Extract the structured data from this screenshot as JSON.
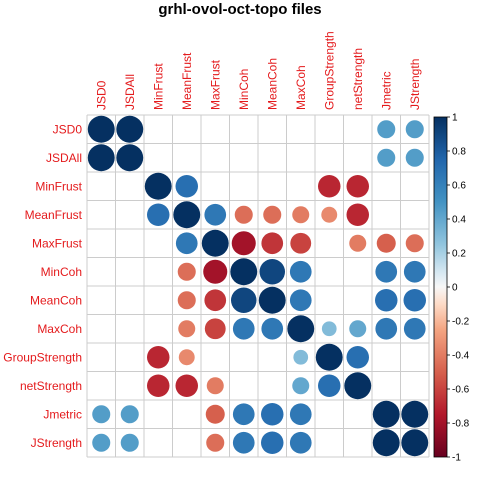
{
  "chart_data": {
    "type": "heatmap",
    "title": "grhl-ovol-oct-topo files",
    "variables": [
      "JSD0",
      "JSDAll",
      "MinFrust",
      "MeanFrust",
      "MaxFrust",
      "MinCoh",
      "MeanCoh",
      "MaxCoh",
      "GroupStrength",
      "netStrength",
      "Jmetric",
      "JStrength"
    ],
    "matrix": [
      [
        1,
        1,
        0,
        0,
        0,
        0,
        0,
        0,
        0,
        0,
        0.45,
        0.45
      ],
      [
        1,
        1,
        0,
        0,
        0,
        0,
        0,
        0,
        0,
        0,
        0.45,
        0.45
      ],
      [
        0,
        0,
        1,
        0.7,
        0,
        0,
        0,
        0,
        -0.7,
        -0.7,
        0,
        0
      ],
      [
        0,
        0,
        0.7,
        1,
        0.65,
        -0.45,
        -0.45,
        -0.4,
        -0.35,
        -0.7,
        0,
        0
      ],
      [
        0,
        0,
        0,
        0.65,
        1,
        -0.8,
        -0.65,
        -0.6,
        0,
        -0.4,
        -0.5,
        -0.45
      ],
      [
        0,
        0,
        0,
        -0.45,
        -0.8,
        1,
        0.9,
        0.65,
        0,
        0,
        0.65,
        0.65
      ],
      [
        0,
        0,
        0,
        -0.45,
        -0.65,
        0.9,
        1,
        0.65,
        0,
        0,
        0.7,
        0.7
      ],
      [
        0,
        0,
        0,
        -0.4,
        -0.6,
        0.65,
        0.65,
        1,
        0.3,
        0.4,
        0.65,
        0.65
      ],
      [
        0,
        0,
        -0.7,
        -0.35,
        0,
        0,
        0,
        0.3,
        1,
        0.7,
        0,
        0
      ],
      [
        0,
        0,
        -0.7,
        -0.7,
        -0.4,
        0,
        0,
        0.4,
        0.7,
        1,
        0,
        0
      ],
      [
        0.45,
        0.45,
        0,
        0,
        -0.5,
        0.65,
        0.7,
        0.65,
        0,
        0,
        1,
        1
      ],
      [
        0.45,
        0.45,
        0,
        0,
        -0.45,
        0.65,
        0.7,
        0.65,
        0,
        0,
        1,
        1
      ]
    ],
    "colorbar": {
      "ticks": [
        "1",
        "0.8",
        "0.6",
        "0.4",
        "0.2",
        "0",
        "-0.2",
        "-0.4",
        "-0.6",
        "-0.8",
        "-1"
      ],
      "range": [
        -1,
        1
      ]
    },
    "colors": {
      "negative_end": "#67001f",
      "midpoint": "#f7f7f7",
      "positive_end": "#053061",
      "labels": "#e41a1c",
      "grid": "#cccccc"
    }
  }
}
